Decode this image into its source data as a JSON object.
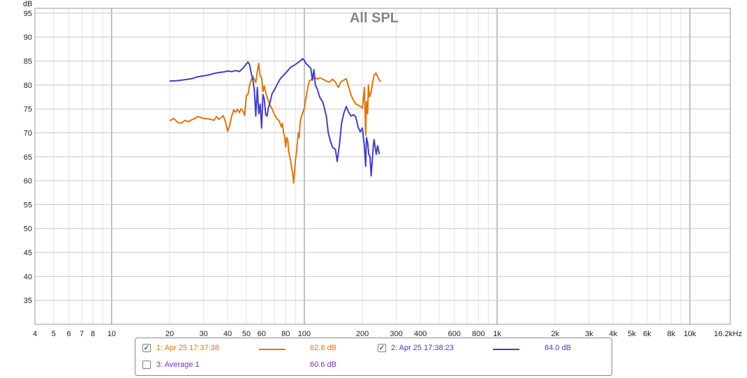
{
  "chart_data": {
    "type": "line",
    "title": "All SPL",
    "ylabel": "dB",
    "xlabel": "",
    "x_scale": "log",
    "xlim": [
      4,
      16200
    ],
    "ylim": [
      30,
      96
    ],
    "grid": true,
    "y_ticks": [
      "35",
      "40",
      "45",
      "50",
      "55",
      "60",
      "65",
      "70",
      "75",
      "80",
      "85",
      "90",
      "95"
    ],
    "x_ticks": [
      {
        "v": 4,
        "label": "4"
      },
      {
        "v": 5,
        "label": "5"
      },
      {
        "v": 6,
        "label": "6"
      },
      {
        "v": 7,
        "label": "7"
      },
      {
        "v": 8,
        "label": "8"
      },
      {
        "v": 10,
        "label": "10"
      },
      {
        "v": 20,
        "label": "20"
      },
      {
        "v": 30,
        "label": "30"
      },
      {
        "v": 40,
        "label": "40"
      },
      {
        "v": 50,
        "label": "50"
      },
      {
        "v": 60,
        "label": "60"
      },
      {
        "v": 80,
        "label": "80"
      },
      {
        "v": 100,
        "label": "100"
      },
      {
        "v": 200,
        "label": "200"
      },
      {
        "v": 300,
        "label": "300"
      },
      {
        "v": 400,
        "label": "400"
      },
      {
        "v": 600,
        "label": "600"
      },
      {
        "v": 800,
        "label": "800"
      },
      {
        "v": 1000,
        "label": "1k"
      },
      {
        "v": 2000,
        "label": "2k"
      },
      {
        "v": 3000,
        "label": "3k"
      },
      {
        "v": 4000,
        "label": "4k"
      },
      {
        "v": 5000,
        "label": "5k"
      },
      {
        "v": 6000,
        "label": "6k"
      },
      {
        "v": 8000,
        "label": "8k"
      },
      {
        "v": 10000,
        "label": "10k"
      },
      {
        "v": 16200,
        "label": "16.2kHz"
      }
    ],
    "series": [
      {
        "name": "1: Apr 25 17:37:38",
        "color": "#d9780f",
        "points": [
          [
            20,
            72.5
          ],
          [
            21,
            73
          ],
          [
            22,
            72.2
          ],
          [
            23,
            72
          ],
          [
            24,
            72.6
          ],
          [
            25,
            72.3
          ],
          [
            26,
            72.7
          ],
          [
            27,
            73
          ],
          [
            28,
            73.4
          ],
          [
            29,
            73.2
          ],
          [
            30,
            73
          ],
          [
            32,
            72.9
          ],
          [
            34,
            72.6
          ],
          [
            35,
            73.4
          ],
          [
            36,
            72.8
          ],
          [
            38,
            73.6
          ],
          [
            39,
            72.2
          ],
          [
            40,
            70.3
          ],
          [
            41,
            71.6
          ],
          [
            42,
            73.5
          ],
          [
            43,
            74.8
          ],
          [
            44,
            74.3
          ],
          [
            45,
            74.9
          ],
          [
            46,
            74.2
          ],
          [
            47,
            75
          ],
          [
            48,
            74.6
          ],
          [
            49,
            73.6
          ],
          [
            50,
            77.8
          ],
          [
            51,
            78
          ],
          [
            52,
            80
          ],
          [
            53,
            81
          ],
          [
            54,
            81.8
          ],
          [
            55,
            81.2
          ],
          [
            56,
            80.5
          ],
          [
            57,
            82.8
          ],
          [
            58,
            84.5
          ],
          [
            59,
            81.8
          ],
          [
            60,
            81.6
          ],
          [
            61,
            78.6
          ],
          [
            62,
            79.8
          ],
          [
            63,
            78.4
          ],
          [
            64,
            77.5
          ],
          [
            66,
            76
          ],
          [
            68,
            75
          ],
          [
            70,
            73.8
          ],
          [
            72,
            73
          ],
          [
            74,
            72.5
          ],
          [
            76,
            71.2
          ],
          [
            77,
            72
          ],
          [
            78,
            70
          ],
          [
            79,
            69.2
          ],
          [
            80,
            67
          ],
          [
            81,
            69
          ],
          [
            82,
            68.5
          ],
          [
            83,
            66
          ],
          [
            84,
            65
          ],
          [
            85,
            64
          ],
          [
            86,
            62.5
          ],
          [
            87,
            61.5
          ],
          [
            88,
            59.5
          ],
          [
            89,
            62
          ],
          [
            90,
            64.5
          ],
          [
            91,
            66
          ],
          [
            92,
            68
          ],
          [
            93,
            70
          ],
          [
            94,
            69
          ],
          [
            95,
            72
          ],
          [
            96,
            73
          ],
          [
            98,
            74.2
          ],
          [
            100,
            75.2
          ],
          [
            103,
            78.4
          ],
          [
            106,
            80.8
          ],
          [
            110,
            81.3
          ],
          [
            114,
            81.5
          ],
          [
            117,
            81.2
          ],
          [
            120,
            81.5
          ],
          [
            125,
            81.2
          ],
          [
            130,
            80.8
          ],
          [
            135,
            80.6
          ],
          [
            140,
            81.2
          ],
          [
            145,
            80.6
          ],
          [
            150,
            79.5
          ],
          [
            155,
            80.7
          ],
          [
            160,
            81
          ],
          [
            165,
            81.3
          ],
          [
            170,
            79.5
          ],
          [
            175,
            77.8
          ],
          [
            180,
            76.8
          ],
          [
            185,
            76
          ],
          [
            190,
            75.8
          ],
          [
            195,
            75.5
          ],
          [
            200,
            75.2
          ],
          [
            205,
            79.5
          ],
          [
            208,
            69.5
          ],
          [
            210,
            76.5
          ],
          [
            213,
            74
          ],
          [
            215,
            80
          ],
          [
            218,
            77.5
          ],
          [
            222,
            78.5
          ],
          [
            226,
            80.5
          ],
          [
            230,
            82
          ],
          [
            235,
            82.5
          ],
          [
            240,
            81.7
          ],
          [
            245,
            81
          ],
          [
            250,
            80.7
          ]
        ]
      },
      {
        "name": "2: Apr 25 17:38:23",
        "color": "#4340c0",
        "points": [
          [
            20,
            80.8
          ],
          [
            22,
            80.9
          ],
          [
            24,
            81.1
          ],
          [
            26,
            81.3
          ],
          [
            28,
            81.7
          ],
          [
            30,
            81.9
          ],
          [
            32,
            82.1
          ],
          [
            34,
            82.4
          ],
          [
            36,
            82.6
          ],
          [
            38,
            82.7
          ],
          [
            40,
            82.9
          ],
          [
            42,
            82.8
          ],
          [
            44,
            83
          ],
          [
            46,
            82.8
          ],
          [
            48,
            83.5
          ],
          [
            50,
            84.4
          ],
          [
            51,
            84.8
          ],
          [
            52,
            84.2
          ],
          [
            53,
            82.5
          ],
          [
            54,
            81.2
          ],
          [
            55,
            79
          ],
          [
            56,
            73.5
          ],
          [
            57,
            79.5
          ],
          [
            58,
            74
          ],
          [
            59,
            76
          ],
          [
            60,
            71
          ],
          [
            61,
            78
          ],
          [
            62,
            77
          ],
          [
            63,
            73.8
          ],
          [
            64,
            73.5
          ],
          [
            65,
            75.2
          ],
          [
            66,
            76
          ],
          [
            67,
            77
          ],
          [
            68,
            78.2
          ],
          [
            70,
            79
          ],
          [
            72,
            80
          ],
          [
            75,
            81.3
          ],
          [
            80,
            82.5
          ],
          [
            85,
            83.7
          ],
          [
            90,
            84.3
          ],
          [
            95,
            85
          ],
          [
            98,
            85.5
          ],
          [
            100,
            85.1
          ],
          [
            102,
            84.5
          ],
          [
            105,
            84
          ],
          [
            108,
            83.5
          ],
          [
            110,
            81
          ],
          [
            112,
            83.2
          ],
          [
            114,
            80
          ],
          [
            117,
            79
          ],
          [
            120,
            77.5
          ],
          [
            125,
            76.3
          ],
          [
            130,
            73.5
          ],
          [
            133,
            70
          ],
          [
            136,
            68.5
          ],
          [
            140,
            67
          ],
          [
            145,
            66.5
          ],
          [
            148,
            64
          ],
          [
            152,
            67.5
          ],
          [
            156,
            72
          ],
          [
            160,
            74
          ],
          [
            165,
            75.5
          ],
          [
            170,
            74.2
          ],
          [
            175,
            73.5
          ],
          [
            180,
            73.8
          ],
          [
            185,
            73.3
          ],
          [
            190,
            71.2
          ],
          [
            195,
            70.2
          ],
          [
            200,
            71
          ],
          [
            205,
            67
          ],
          [
            208,
            63
          ],
          [
            210,
            69
          ],
          [
            213,
            68
          ],
          [
            216,
            65.5
          ],
          [
            219,
            65
          ],
          [
            222,
            61
          ],
          [
            225,
            64
          ],
          [
            228,
            67.5
          ],
          [
            230,
            68.6
          ],
          [
            233,
            67
          ],
          [
            236,
            65.5
          ],
          [
            240,
            67.3
          ],
          [
            245,
            65.5
          ]
        ]
      }
    ]
  },
  "legend": {
    "items": [
      {
        "label": "1: Apr 25 17:37:38",
        "checked": true,
        "check_mark": "✓",
        "value": "62.8 dB",
        "color": "#d9780f"
      },
      {
        "label": "2: Apr 25 17:38:23",
        "checked": true,
        "check_mark": "✓",
        "value": "84.0 dB",
        "color": "#4340c0"
      },
      {
        "label": "3: Average 1",
        "checked": false,
        "check_mark": "",
        "value": "60.6 dB",
        "color": "#7b2fc4"
      }
    ]
  },
  "colors": {
    "grid_major": "#c8c8c8",
    "grid_minor": "#e3e3e3",
    "decade_line": "#a8a8a8",
    "axis_text": "#222222",
    "title": "#858585"
  }
}
